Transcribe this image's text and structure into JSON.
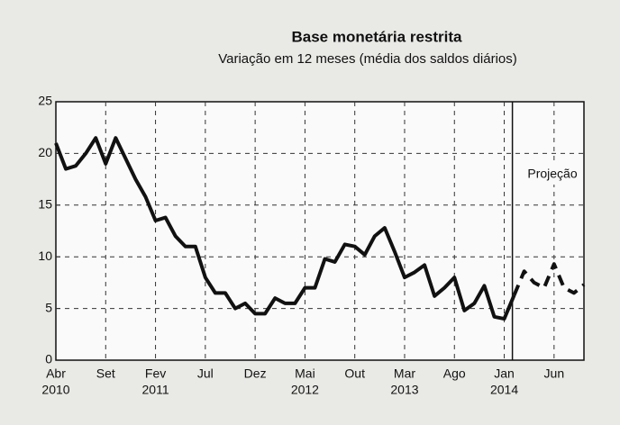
{
  "chart_data": {
    "type": "line",
    "title": "Base monetária restrita",
    "subtitle": "Variação em 12 meses (média dos saldos diários)",
    "annotation": "Projeção",
    "categories": [
      "Abr",
      null,
      null,
      null,
      null,
      "Set",
      null,
      null,
      null,
      null,
      "Fev",
      null,
      null,
      null,
      null,
      "Jul",
      null,
      null,
      null,
      null,
      "Dez",
      null,
      null,
      null,
      null,
      "Mai",
      null,
      null,
      null,
      null,
      "Out",
      null,
      null,
      null,
      null,
      "Mar",
      null,
      null,
      null,
      null,
      "Ago",
      null,
      null,
      null,
      null,
      "Jan",
      null,
      null,
      null,
      null,
      "Jun",
      null,
      null,
      null
    ],
    "category_years": [
      "2010",
      null,
      null,
      null,
      null,
      null,
      null,
      null,
      null,
      null,
      "2011",
      null,
      null,
      null,
      null,
      null,
      null,
      null,
      null,
      null,
      null,
      null,
      null,
      null,
      null,
      "2012",
      null,
      null,
      null,
      null,
      null,
      null,
      null,
      null,
      null,
      "2013",
      null,
      null,
      null,
      null,
      null,
      null,
      null,
      null,
      null,
      "2014",
      null,
      null,
      null,
      null,
      null,
      null,
      null,
      null
    ],
    "series": [
      {
        "color": "#111111",
        "dash": false,
        "values": [
          21,
          18.5,
          18.8,
          20,
          21.5,
          19,
          21.5,
          19.5,
          17.5,
          15.8,
          13.5,
          13.8,
          12,
          11,
          11,
          8,
          6.5,
          6.5,
          5,
          5.5,
          4.5,
          4.5,
          6,
          5.5,
          5.5,
          7,
          7,
          9.8,
          9.5,
          11.2,
          11,
          10.2,
          12,
          12.8,
          10.5,
          8,
          8.5,
          9.2,
          6.2,
          7,
          8,
          4.8,
          5.5,
          7.2,
          4.2,
          4,
          6.3,
          null,
          null,
          null,
          null,
          null,
          null,
          null
        ]
      },
      {
        "color": "#111111",
        "dash": true,
        "values": [
          null,
          null,
          null,
          null,
          null,
          null,
          null,
          null,
          null,
          null,
          null,
          null,
          null,
          null,
          null,
          null,
          null,
          null,
          null,
          null,
          null,
          null,
          null,
          null,
          null,
          null,
          null,
          null,
          null,
          null,
          null,
          null,
          null,
          null,
          null,
          null,
          null,
          null,
          null,
          null,
          null,
          null,
          null,
          null,
          null,
          null,
          6.3,
          8.6,
          7.5,
          7,
          9.3,
          7,
          6.5,
          7.3
        ]
      }
    ],
    "ylim": [
      0,
      25
    ],
    "yticks": [
      0,
      5,
      10,
      15,
      20,
      25
    ],
    "grid": true
  }
}
